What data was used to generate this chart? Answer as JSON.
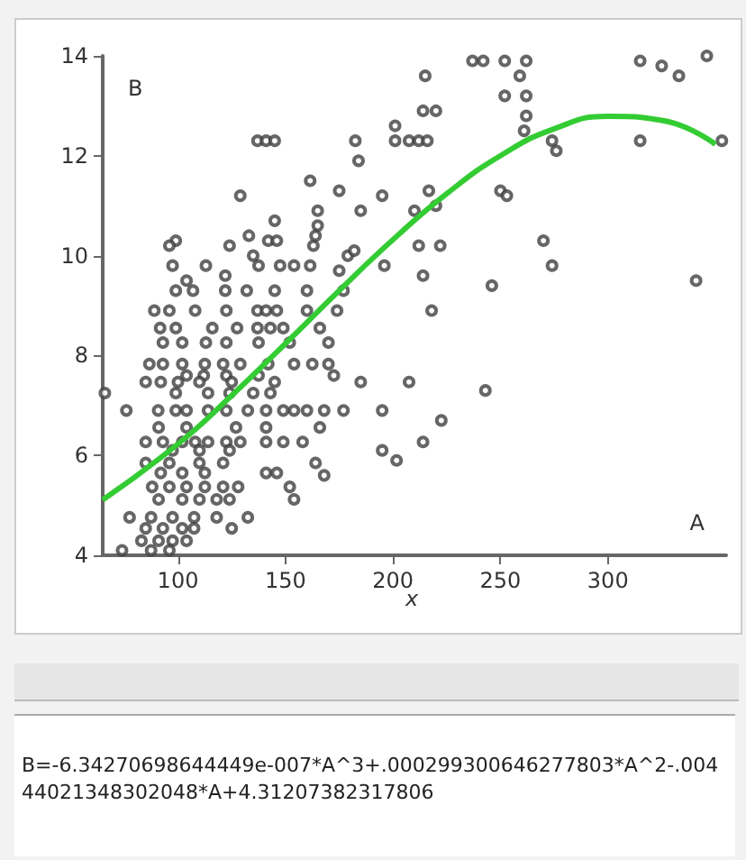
{
  "chart_data": {
    "type": "scatter",
    "xlabel": "A",
    "ylabel": "B",
    "xlim": [
      65,
      355
    ],
    "ylim": [
      4,
      14
    ],
    "xticks": [
      100,
      150,
      200,
      250,
      300
    ],
    "yticks": [
      4,
      6,
      8,
      10,
      12,
      14
    ],
    "grid": false,
    "marker": "circle",
    "annotations": [
      "x",
      "B=-6.34270698644449e-007*A^3+.000299300646277803*A^2-.00444021348302048*A+4.31207382317806"
    ],
    "series": [
      {
        "color": "#404040",
        "x": [
          237,
          242,
          252,
          262,
          315,
          325,
          346,
          215,
          333,
          259,
          252,
          262,
          214,
          220,
          201,
          201,
          207.5,
          212,
          216,
          182.5,
          184,
          137,
          141,
          145,
          262,
          261,
          274,
          276,
          315,
          353,
          161.5,
          175,
          129,
          195,
          216.7,
          220,
          250,
          253,
          165,
          185,
          210,
          145,
          165,
          270,
          274,
          341,
          246,
          196,
          212,
          222,
          214,
          99,
          96,
          124,
          133,
          142,
          146,
          163,
          164,
          179,
          182,
          97.5,
          104,
          113,
          122,
          135,
          137.5,
          147.5,
          154,
          161.5,
          175,
          99,
          107,
          122,
          132,
          145,
          160,
          177,
          89,
          96,
          108,
          122.5,
          137,
          141,
          146,
          160,
          174,
          218,
          91.7,
          99,
          116,
          127.5,
          137,
          143,
          149,
          166,
          93,
          102,
          113,
          122.5,
          137.5,
          152,
          170,
          86.7,
          93,
          102,
          112.5,
          121,
          129,
          142,
          154,
          162.5,
          170,
          104,
          112,
          122.5,
          137.5,
          172.5,
          85,
          92,
          100,
          110,
          125,
          145,
          185,
          207.5,
          66,
          99,
          114,
          124,
          135,
          143,
          243,
          76,
          90.8,
          99,
          104,
          114,
          122.5,
          132.5,
          141,
          149,
          154,
          160,
          168,
          177,
          195,
          222.5,
          91,
          104,
          127,
          141,
          166,
          85,
          93,
          102,
          108,
          114,
          122.5,
          129,
          141,
          149,
          158,
          214,
          195,
          97.5,
          110,
          124,
          201.7,
          85,
          96,
          110,
          121,
          164,
          92,
          102,
          112.5,
          141,
          146,
          168,
          88,
          96,
          104,
          112.5,
          121,
          128,
          152,
          91,
          102,
          110,
          118,
          124,
          154,
          77.5,
          87.5,
          97.5,
          107.5,
          118,
          132.5,
          85,
          93,
          102,
          107.5,
          125,
          83,
          91,
          97.5,
          104,
          74,
          87.5,
          96
        ],
        "values": [
          13.9,
          13.9,
          13.9,
          13.9,
          13.9,
          13.8,
          14.0,
          13.6,
          13.6,
          13.6,
          13.2,
          13.2,
          12.9,
          12.9,
          12.6,
          12.3,
          12.3,
          12.3,
          12.3,
          12.3,
          11.9,
          12.3,
          12.3,
          12.3,
          12.8,
          12.5,
          12.3,
          12.1,
          12.3,
          12.3,
          11.5,
          11.3,
          11.2,
          11.2,
          11.3,
          11.0,
          11.3,
          11.2,
          10.9,
          10.9,
          10.9,
          10.7,
          10.6,
          10.3,
          9.8,
          9.5,
          9.4,
          9.8,
          10.2,
          10.2,
          9.6,
          10.3,
          10.2,
          10.2,
          10.4,
          10.3,
          10.3,
          10.2,
          10.4,
          10.0,
          10.1,
          9.8,
          9.5,
          9.8,
          9.6,
          10.0,
          9.8,
          9.8,
          9.8,
          9.8,
          9.7,
          9.3,
          9.3,
          9.3,
          9.3,
          9.3,
          9.3,
          9.3,
          8.9,
          8.9,
          8.9,
          8.9,
          8.9,
          8.9,
          8.9,
          8.9,
          8.9,
          8.9,
          8.55,
          8.55,
          8.55,
          8.55,
          8.55,
          8.55,
          8.55,
          8.55,
          8.26,
          8.26,
          8.26,
          8.26,
          8.26,
          8.26,
          8.26,
          7.83,
          7.83,
          7.83,
          7.83,
          7.83,
          7.83,
          7.83,
          7.83,
          7.83,
          7.83,
          7.6,
          7.6,
          7.6,
          7.6,
          7.6,
          7.47,
          7.47,
          7.47,
          7.47,
          7.47,
          7.47,
          7.47,
          7.47,
          7.25,
          7.25,
          7.25,
          7.25,
          7.25,
          7.25,
          7.3,
          6.9,
          6.9,
          6.9,
          6.9,
          6.9,
          6.9,
          6.9,
          6.9,
          6.9,
          6.9,
          6.9,
          6.9,
          6.9,
          6.9,
          6.7,
          6.56,
          6.56,
          6.56,
          6.56,
          6.56,
          6.27,
          6.27,
          6.27,
          6.27,
          6.27,
          6.27,
          6.27,
          6.27,
          6.27,
          6.27,
          6.27,
          6.1,
          6.1,
          6.1,
          6.1,
          5.9,
          5.85,
          5.85,
          5.85,
          5.85,
          5.85,
          5.65,
          5.65,
          5.65,
          5.65,
          5.65,
          5.6,
          5.37,
          5.37,
          5.37,
          5.37,
          5.37,
          5.37,
          5.37,
          5.12,
          5.12,
          5.12,
          5.12,
          5.12,
          5.12,
          4.76,
          4.76,
          4.76,
          4.76,
          4.76,
          4.76,
          4.54,
          4.54,
          4.54,
          4.54,
          4.54,
          4.29,
          4.29,
          4.29,
          4.29,
          4.1,
          4.1,
          4.1
        ]
      },
      {
        "type": "line",
        "color": "#33cc33",
        "marker": "none",
        "x": [
          65,
          100,
          125,
          150,
          175,
          200,
          225,
          250,
          275,
          300,
          325,
          350
        ],
        "values": [
          5.11,
          6.23,
          7.2,
          8.24,
          9.3,
          10.32,
          11.24,
          12.0,
          12.54,
          12.79,
          12.71,
          12.23
        ]
      }
    ]
  }
}
